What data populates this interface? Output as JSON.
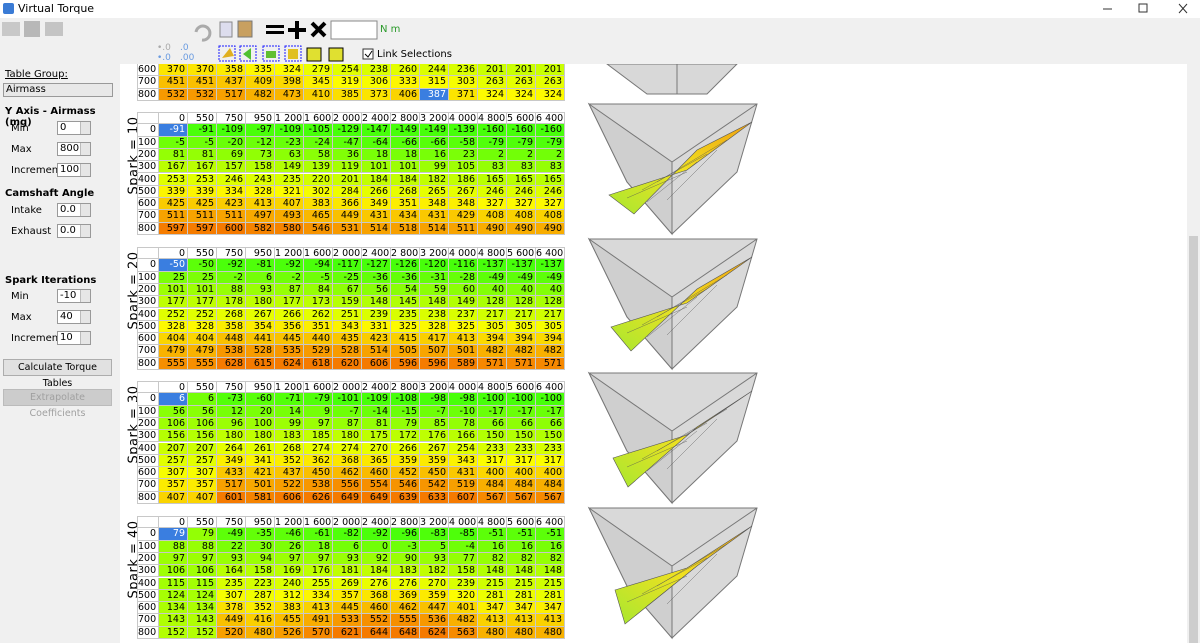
{
  "window": {
    "title": "Virtual Torque"
  },
  "toolbar": {
    "unit": "N m",
    "link_selections": "Link Selections"
  },
  "sidebar": {
    "table_group_label": "Table Group:",
    "table_group": "Airmass",
    "y_axis_title": "Y Axis - Airmass (mg)",
    "y_axis_fields": [
      {
        "label": "Min",
        "value": 0
      },
      {
        "label": "Max",
        "value": 800
      },
      {
        "label": "Increment",
        "value": 100
      }
    ],
    "camshaft_title": "Camshaft Angle",
    "camshaft_fields": [
      {
        "label": "Intake",
        "value": "0.0"
      },
      {
        "label": "Exhaust",
        "value": "0.0"
      }
    ],
    "spark_title": "Spark Iterations",
    "spark_fields": [
      {
        "label": "Min",
        "value": -10
      },
      {
        "label": "Max",
        "value": 40
      },
      {
        "label": "Increment",
        "value": 10
      }
    ],
    "calculate_button": "Calculate Torque Tables",
    "extrapolate_button": "Extrapolate Coefficients"
  },
  "columns": [
    "0",
    "550",
    "750",
    "950",
    "1 200",
    "1 600",
    "2 000",
    "2 400",
    "2 800",
    "3 200",
    "4 000",
    "4 800",
    "5 600",
    "6 400"
  ],
  "tables": [
    {
      "row_labels": [
        600,
        700,
        800
      ],
      "selected": [
        2,
        9
      ],
      "cells": [
        [
          370,
          370,
          358,
          335,
          324,
          279,
          254,
          238,
          260,
          244,
          236,
          201,
          201,
          201
        ],
        [
          451,
          451,
          437,
          409,
          398,
          345,
          319,
          306,
          333,
          315,
          303,
          263,
          263,
          263
        ],
        [
          532,
          532,
          517,
          482,
          473,
          410,
          385,
          373,
          406,
          387,
          371,
          324,
          324,
          324
        ]
      ]
    },
    {
      "label": "Spark = 10",
      "row_labels": [
        0,
        100,
        200,
        300,
        400,
        500,
        600,
        700,
        800
      ],
      "selected": [
        0,
        0
      ],
      "cells": [
        [
          -91,
          -91,
          -109,
          -97,
          -109,
          -105,
          -129,
          -147,
          -149,
          -149,
          -139,
          -160,
          -160,
          -160
        ],
        [
          -5,
          -5,
          -20,
          -12,
          -23,
          -24,
          -47,
          -64,
          -66,
          -66,
          -58,
          -79,
          -79,
          -79
        ],
        [
          81,
          81,
          69,
          73,
          63,
          58,
          36,
          18,
          18,
          16,
          23,
          2,
          2,
          2
        ],
        [
          167,
          167,
          157,
          158,
          149,
          139,
          119,
          101,
          101,
          99,
          105,
          83,
          83,
          83
        ],
        [
          253,
          253,
          246,
          243,
          235,
          220,
          201,
          184,
          184,
          182,
          186,
          165,
          165,
          165
        ],
        [
          339,
          339,
          334,
          328,
          321,
          302,
          284,
          266,
          268,
          265,
          267,
          246,
          246,
          246
        ],
        [
          425,
          425,
          423,
          413,
          407,
          383,
          366,
          349,
          351,
          348,
          348,
          327,
          327,
          327
        ],
        [
          511,
          511,
          511,
          497,
          493,
          465,
          449,
          431,
          434,
          431,
          429,
          408,
          408,
          408
        ],
        [
          597,
          597,
          600,
          582,
          580,
          546,
          531,
          514,
          518,
          514,
          511,
          490,
          490,
          490
        ]
      ]
    },
    {
      "label": "Spark = 20",
      "row_labels": [
        0,
        100,
        200,
        300,
        400,
        500,
        600,
        700,
        800
      ],
      "selected": [
        0,
        0
      ],
      "cells": [
        [
          -50,
          -50,
          -92,
          -81,
          -92,
          -94,
          -117,
          -127,
          -126,
          -120,
          -116,
          -137,
          -137,
          -137
        ],
        [
          25,
          25,
          -2,
          6,
          -2,
          -5,
          -25,
          -36,
          -36,
          -31,
          -28,
          -49,
          -49,
          -49
        ],
        [
          101,
          101,
          88,
          93,
          87,
          84,
          67,
          56,
          54,
          59,
          60,
          40,
          40,
          40
        ],
        [
          177,
          177,
          178,
          180,
          177,
          173,
          159,
          148,
          145,
          148,
          149,
          128,
          128,
          128
        ],
        [
          252,
          252,
          268,
          267,
          266,
          262,
          251,
          239,
          235,
          238,
          237,
          217,
          217,
          217
        ],
        [
          328,
          328,
          358,
          354,
          356,
          351,
          343,
          331,
          325,
          328,
          325,
          305,
          305,
          305
        ],
        [
          404,
          404,
          448,
          441,
          445,
          440,
          435,
          423,
          415,
          417,
          413,
          394,
          394,
          394
        ],
        [
          479,
          479,
          538,
          528,
          535,
          529,
          528,
          514,
          505,
          507,
          501,
          482,
          482,
          482
        ],
        [
          555,
          555,
          628,
          615,
          624,
          618,
          620,
          606,
          596,
          596,
          589,
          571,
          571,
          571
        ]
      ]
    },
    {
      "label": "Spark = 30",
      "row_labels": [
        0,
        100,
        200,
        300,
        400,
        500,
        600,
        700,
        800
      ],
      "selected": [
        0,
        0
      ],
      "cells": [
        [
          6,
          6,
          -73,
          -60,
          -71,
          -79,
          -101,
          -109,
          -108,
          -98,
          -98,
          -100,
          -100,
          -100
        ],
        [
          56,
          56,
          12,
          20,
          14,
          9,
          -7,
          -14,
          -15,
          -7,
          -10,
          -17,
          -17,
          -17
        ],
        [
          106,
          106,
          96,
          100,
          99,
          97,
          87,
          81,
          79,
          85,
          78,
          66,
          66,
          66
        ],
        [
          156,
          156,
          180,
          180,
          183,
          185,
          180,
          175,
          172,
          176,
          166,
          150,
          150,
          150
        ],
        [
          207,
          207,
          264,
          261,
          268,
          274,
          274,
          270,
          266,
          267,
          254,
          233,
          233,
          233
        ],
        [
          257,
          257,
          349,
          341,
          352,
          362,
          368,
          365,
          359,
          359,
          343,
          317,
          317,
          317
        ],
        [
          307,
          307,
          433,
          421,
          437,
          450,
          462,
          460,
          452,
          450,
          431,
          400,
          400,
          400
        ],
        [
          357,
          357,
          517,
          501,
          522,
          538,
          556,
          554,
          546,
          542,
          519,
          484,
          484,
          484
        ],
        [
          407,
          407,
          601,
          581,
          606,
          626,
          649,
          649,
          639,
          633,
          607,
          567,
          567,
          567
        ]
      ]
    },
    {
      "label": "Spark = 40",
      "row_labels": [
        0,
        100,
        200,
        300,
        400,
        500,
        600,
        700,
        800
      ],
      "selected": [
        0,
        0
      ],
      "cells": [
        [
          79,
          79,
          -49,
          -35,
          -46,
          -61,
          -82,
          -92,
          -96,
          -83,
          -85,
          -51,
          -51,
          -51
        ],
        [
          88,
          88,
          22,
          30,
          26,
          18,
          6,
          0,
          -3,
          5,
          -4,
          16,
          16,
          16
        ],
        [
          97,
          97,
          93,
          94,
          97,
          97,
          93,
          92,
          90,
          93,
          77,
          82,
          82,
          82
        ],
        [
          106,
          106,
          164,
          158,
          169,
          176,
          181,
          184,
          183,
          182,
          158,
          148,
          148,
          148
        ],
        [
          115,
          115,
          235,
          223,
          240,
          255,
          269,
          276,
          276,
          270,
          239,
          215,
          215,
          215
        ],
        [
          124,
          124,
          307,
          287,
          312,
          334,
          357,
          368,
          369,
          359,
          320,
          281,
          281,
          281
        ],
        [
          134,
          134,
          378,
          352,
          383,
          413,
          445,
          460,
          462,
          447,
          401,
          347,
          347,
          347
        ],
        [
          143,
          143,
          449,
          416,
          455,
          491,
          533,
          552,
          555,
          536,
          482,
          413,
          413,
          413
        ],
        [
          152,
          152,
          520,
          480,
          526,
          570,
          621,
          644,
          648,
          624,
          563,
          480,
          480,
          480
        ]
      ]
    }
  ]
}
